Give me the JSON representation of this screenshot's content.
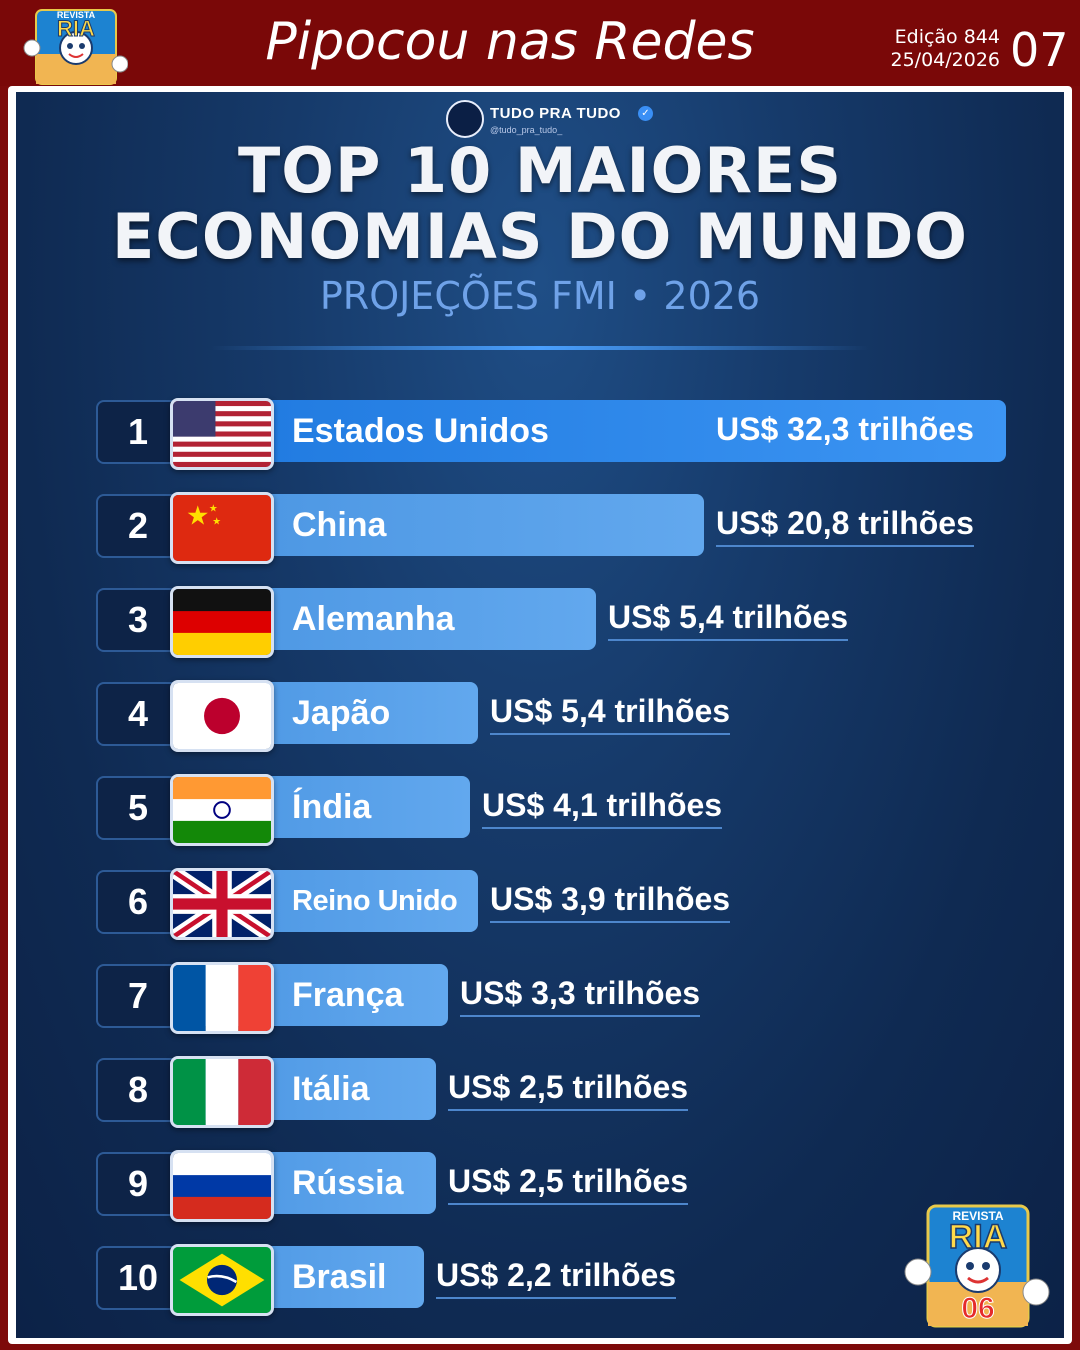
{
  "header": {
    "title": "Pipocou nas Redes",
    "edition": "Edição 844",
    "date": "25/04/2026",
    "page_number": "07"
  },
  "logo": {
    "line1": "REVISTA",
    "line2": "RIA",
    "badge": "06"
  },
  "poster": {
    "brand_name": "TUDO PRA TUDO",
    "brand_handle": "@tudo_pra_tudo_",
    "title_line1": "TOP 10 MAIORES",
    "title_line2": "ECONOMIAS DO MUNDO",
    "subtitle": "PROJEÇÕES FMI • 2026"
  },
  "chart_data": {
    "type": "bar",
    "orientation": "horizontal",
    "title": "TOP 10 MAIORES ECONOMIAS DO MUNDO",
    "subtitle": "PROJEÇÕES FMI • 2026",
    "unit": "US$ trilhões",
    "ranks": [
      "1",
      "2",
      "3",
      "4",
      "5",
      "6",
      "7",
      "8",
      "9",
      "10"
    ],
    "categories": [
      "Estados Unidos",
      "China",
      "Alemanha",
      "Japão",
      "Índia",
      "Reino Unido",
      "França",
      "Itália",
      "Rússia",
      "Brasil"
    ],
    "values": [
      32.3,
      20.8,
      5.4,
      5.4,
      4.1,
      3.9,
      3.3,
      2.5,
      2.5,
      2.2
    ],
    "value_labels": [
      "US$ 32,3 trilhões",
      "US$ 20,8 trilhões",
      "US$ 5,4 trilhões",
      "US$ 5,4 trilhões",
      "US$ 4,1 trilhões",
      "US$ 3,9 trilhões",
      "US$ 3,3 trilhões",
      "US$ 2,5 trilhões",
      "US$ 2,5 trilhões",
      "US$ 2,2 trilhões"
    ],
    "flag_icons": [
      "usa-flag-icon",
      "china-flag-icon",
      "germany-flag-icon",
      "japan-flag-icon",
      "india-flag-icon",
      "uk-flag-icon",
      "france-flag-icon",
      "italy-flag-icon",
      "russia-flag-icon",
      "brazil-flag-icon"
    ],
    "grid": false,
    "legend": "none"
  },
  "colors": {
    "header_bg": "#7a0808",
    "poster_bg": "#163a6a",
    "bar": "#2a86ea",
    "subtitle": "#6fa2e8"
  }
}
